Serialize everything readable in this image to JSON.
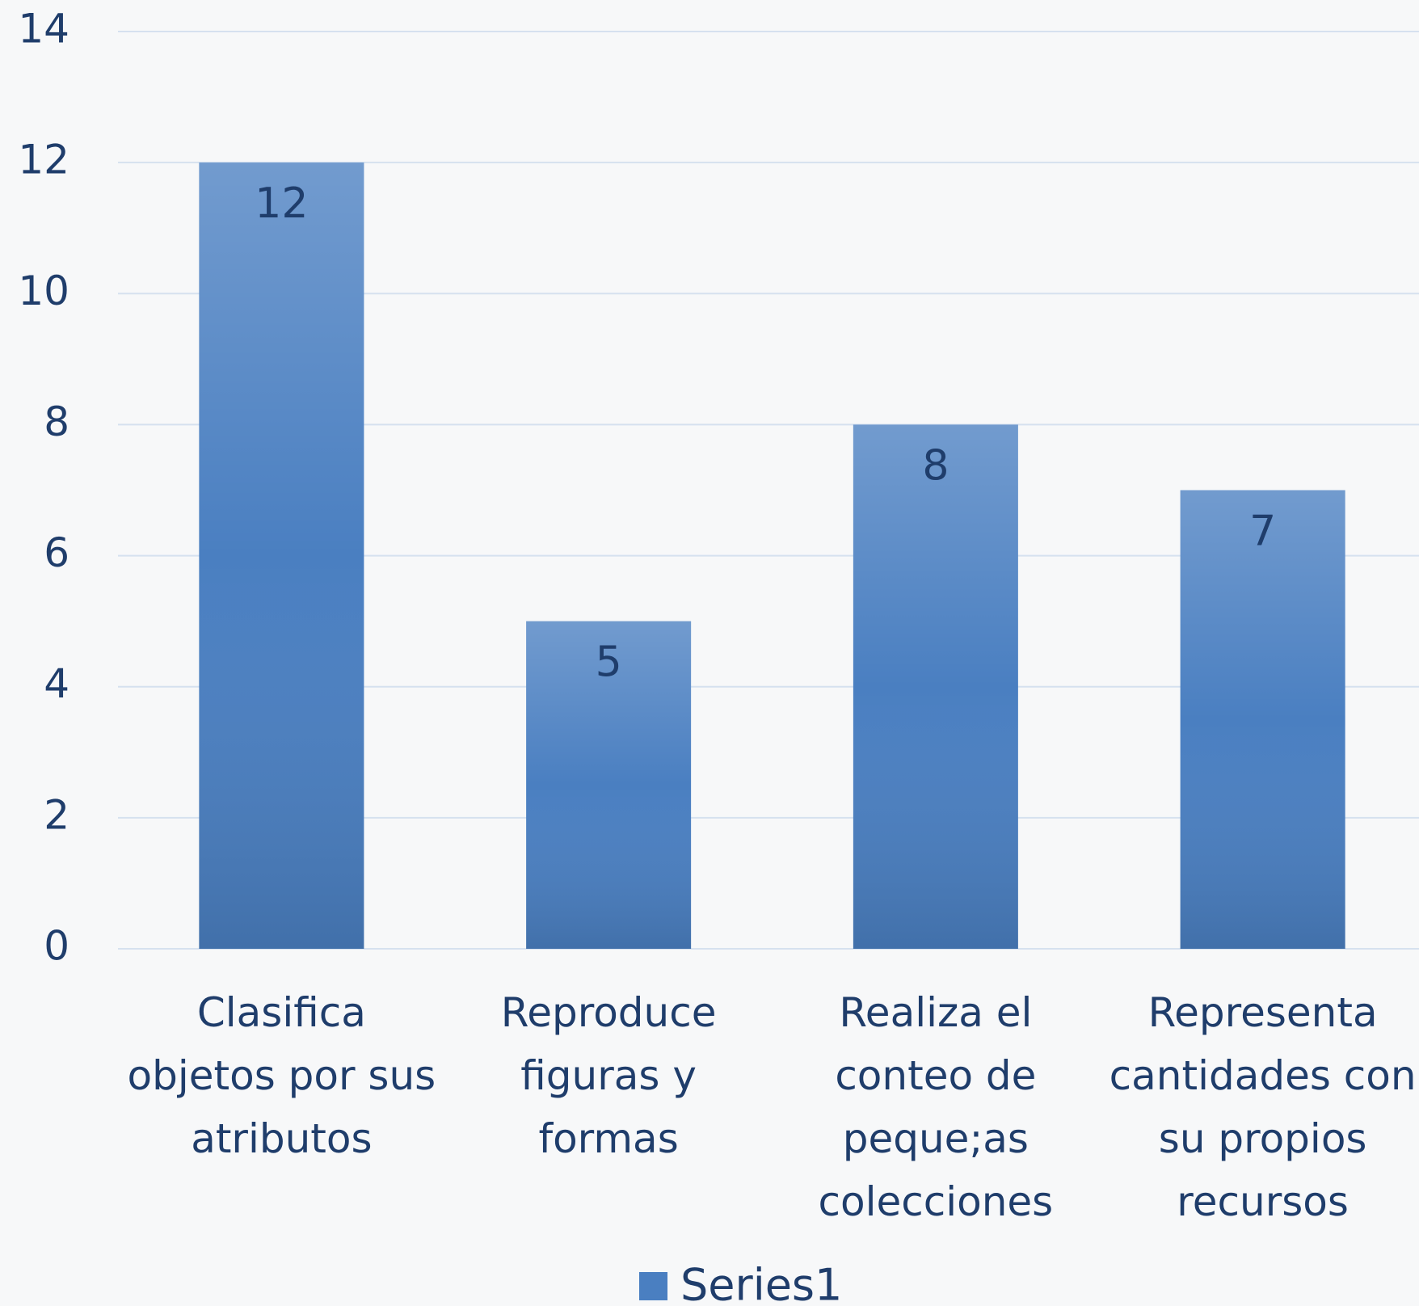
{
  "chart_data": {
    "type": "bar",
    "categories": [
      "Clasifica objetos por sus atributos",
      "Reproduce figuras y formas",
      "Realiza el conteo de peque;as colecciones",
      "Representa cantidades con su propios recursos"
    ],
    "series": [
      {
        "name": "Series1",
        "color": "#4a7fc1",
        "values": [
          12,
          5,
          8,
          7
        ]
      }
    ],
    "ylim": [
      0,
      14
    ],
    "yticks": [
      0,
      2,
      4,
      6,
      8,
      10,
      12,
      14
    ],
    "grid": true,
    "legend": "bottom"
  }
}
